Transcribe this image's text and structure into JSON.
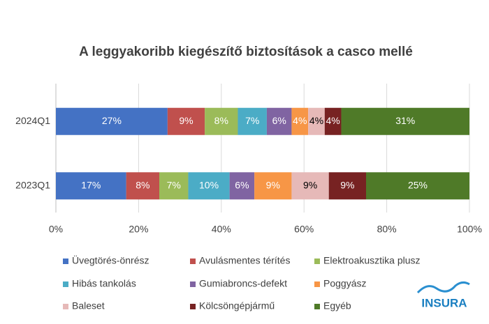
{
  "chart_data": {
    "type": "stacked-bar-horizontal",
    "title": "A leggyakoribb kiegészítő biztosítások a casco mellé",
    "categories": [
      "2024Q1",
      "2023Q1"
    ],
    "series": [
      {
        "name": "Üvegtörés-önrész",
        "color": "#4472c4",
        "label_color": "#ffffff",
        "values": [
          27,
          17
        ],
        "value_labels": [
          "27%",
          "17%"
        ]
      },
      {
        "name": "Avulásmentes térítés",
        "color": "#c0504d",
        "label_color": "#ffffff",
        "values": [
          9,
          8
        ],
        "value_labels": [
          "9%",
          "8%"
        ]
      },
      {
        "name": "Elektroakusztika plusz",
        "color": "#9bbb59",
        "label_color": "#ffffff",
        "values": [
          8,
          7
        ],
        "value_labels": [
          "8%",
          "7%"
        ]
      },
      {
        "name": "Hibás tankolás",
        "color": "#4bacc6",
        "label_color": "#ffffff",
        "values": [
          7,
          10
        ],
        "value_labels": [
          "7%",
          "10%"
        ]
      },
      {
        "name": "Gumiabroncs-defekt",
        "color": "#8064a2",
        "label_color": "#ffffff",
        "values": [
          6,
          6
        ],
        "value_labels": [
          "6%",
          "6%"
        ]
      },
      {
        "name": "Poggyász",
        "color": "#f79646",
        "label_color": "#ffffff",
        "values": [
          4,
          9
        ],
        "value_labels": [
          "4%",
          "9%"
        ]
      },
      {
        "name": "Baleset",
        "color": "#e6b9b8",
        "label_color": "#000000",
        "values": [
          4,
          9
        ],
        "value_labels": [
          "4%",
          "9%"
        ]
      },
      {
        "name": "Kölcsöngépjármű",
        "color": "#772222",
        "label_color": "#ffffff",
        "values": [
          4,
          9
        ],
        "value_labels": [
          "4%",
          "9%"
        ]
      },
      {
        "name": "Egyéb",
        "color": "#4f7a28",
        "label_color": "#ffffff",
        "values": [
          31,
          25
        ],
        "value_labels": [
          "31%",
          "25%"
        ]
      }
    ],
    "xlim": [
      0,
      100
    ],
    "xticks": [
      {
        "value": 0,
        "label": "0%"
      },
      {
        "value": 20,
        "label": "20%"
      },
      {
        "value": 40,
        "label": "40%"
      },
      {
        "value": 60,
        "label": "60%"
      },
      {
        "value": 80,
        "label": "80%"
      },
      {
        "value": 100,
        "label": "100%"
      }
    ],
    "grid": true,
    "legend": "bottom"
  },
  "logo": "INSURA"
}
